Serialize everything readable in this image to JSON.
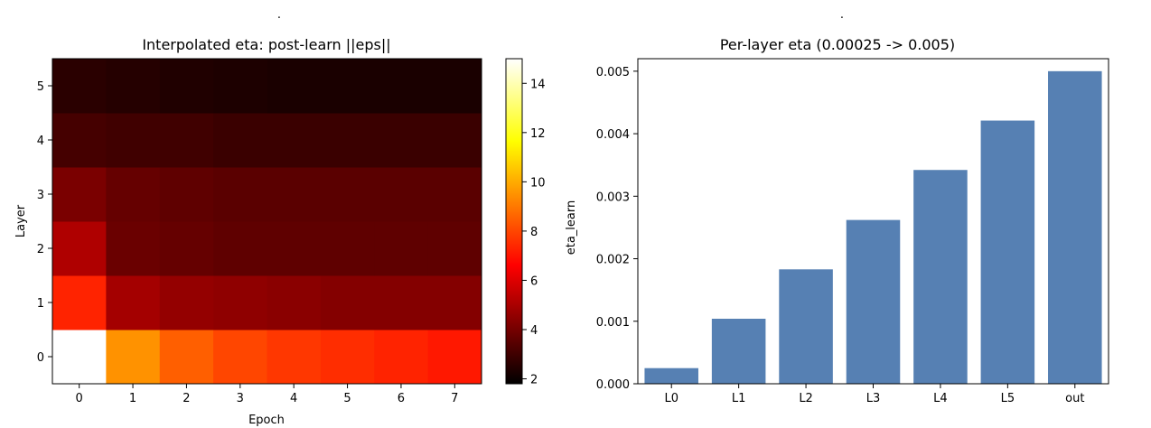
{
  "chart_data": [
    {
      "type": "heatmap",
      "title": "Interpolated eta: post-learn ||eps||",
      "xlabel": "Epoch",
      "ylabel": "Layer",
      "x_ticks": [
        "0",
        "1",
        "2",
        "3",
        "4",
        "5",
        "6",
        "7"
      ],
      "y_ticks": [
        "0",
        "1",
        "2",
        "3",
        "4",
        "5"
      ],
      "colormap": "hot",
      "colorbar": {
        "range": [
          1.8,
          15.0
        ],
        "ticks": [
          "2",
          "4",
          "6",
          "8",
          "10",
          "12",
          "14"
        ]
      },
      "values": [
        [
          15.0,
          9.5,
          8.5,
          8.0,
          7.7,
          7.5,
          7.3,
          7.1
        ],
        [
          7.3,
          4.9,
          4.6,
          4.5,
          4.4,
          4.3,
          4.3,
          4.3
        ],
        [
          5.1,
          3.8,
          3.7,
          3.6,
          3.6,
          3.6,
          3.6,
          3.6
        ],
        [
          4.1,
          3.7,
          3.6,
          3.5,
          3.5,
          3.5,
          3.5,
          3.5
        ],
        [
          3.1,
          3.0,
          3.0,
          2.9,
          2.9,
          2.9,
          2.9,
          2.9
        ],
        [
          2.6,
          2.5,
          2.4,
          2.35,
          2.3,
          2.3,
          2.3,
          2.3
        ]
      ]
    },
    {
      "type": "bar",
      "title": "Per-layer eta (0.00025 -> 0.005)",
      "xlabel": "",
      "ylabel": "eta_learn",
      "categories": [
        "L0",
        "L1",
        "L2",
        "L3",
        "L4",
        "L5",
        "out"
      ],
      "values": [
        0.00025,
        0.00104,
        0.00183,
        0.00262,
        0.00342,
        0.00421,
        0.005
      ],
      "ylim": [
        0,
        0.0052
      ],
      "y_ticks": [
        "0.000",
        "0.001",
        "0.002",
        "0.003",
        "0.004",
        "0.005"
      ],
      "bar_color": "#5680b3"
    }
  ]
}
